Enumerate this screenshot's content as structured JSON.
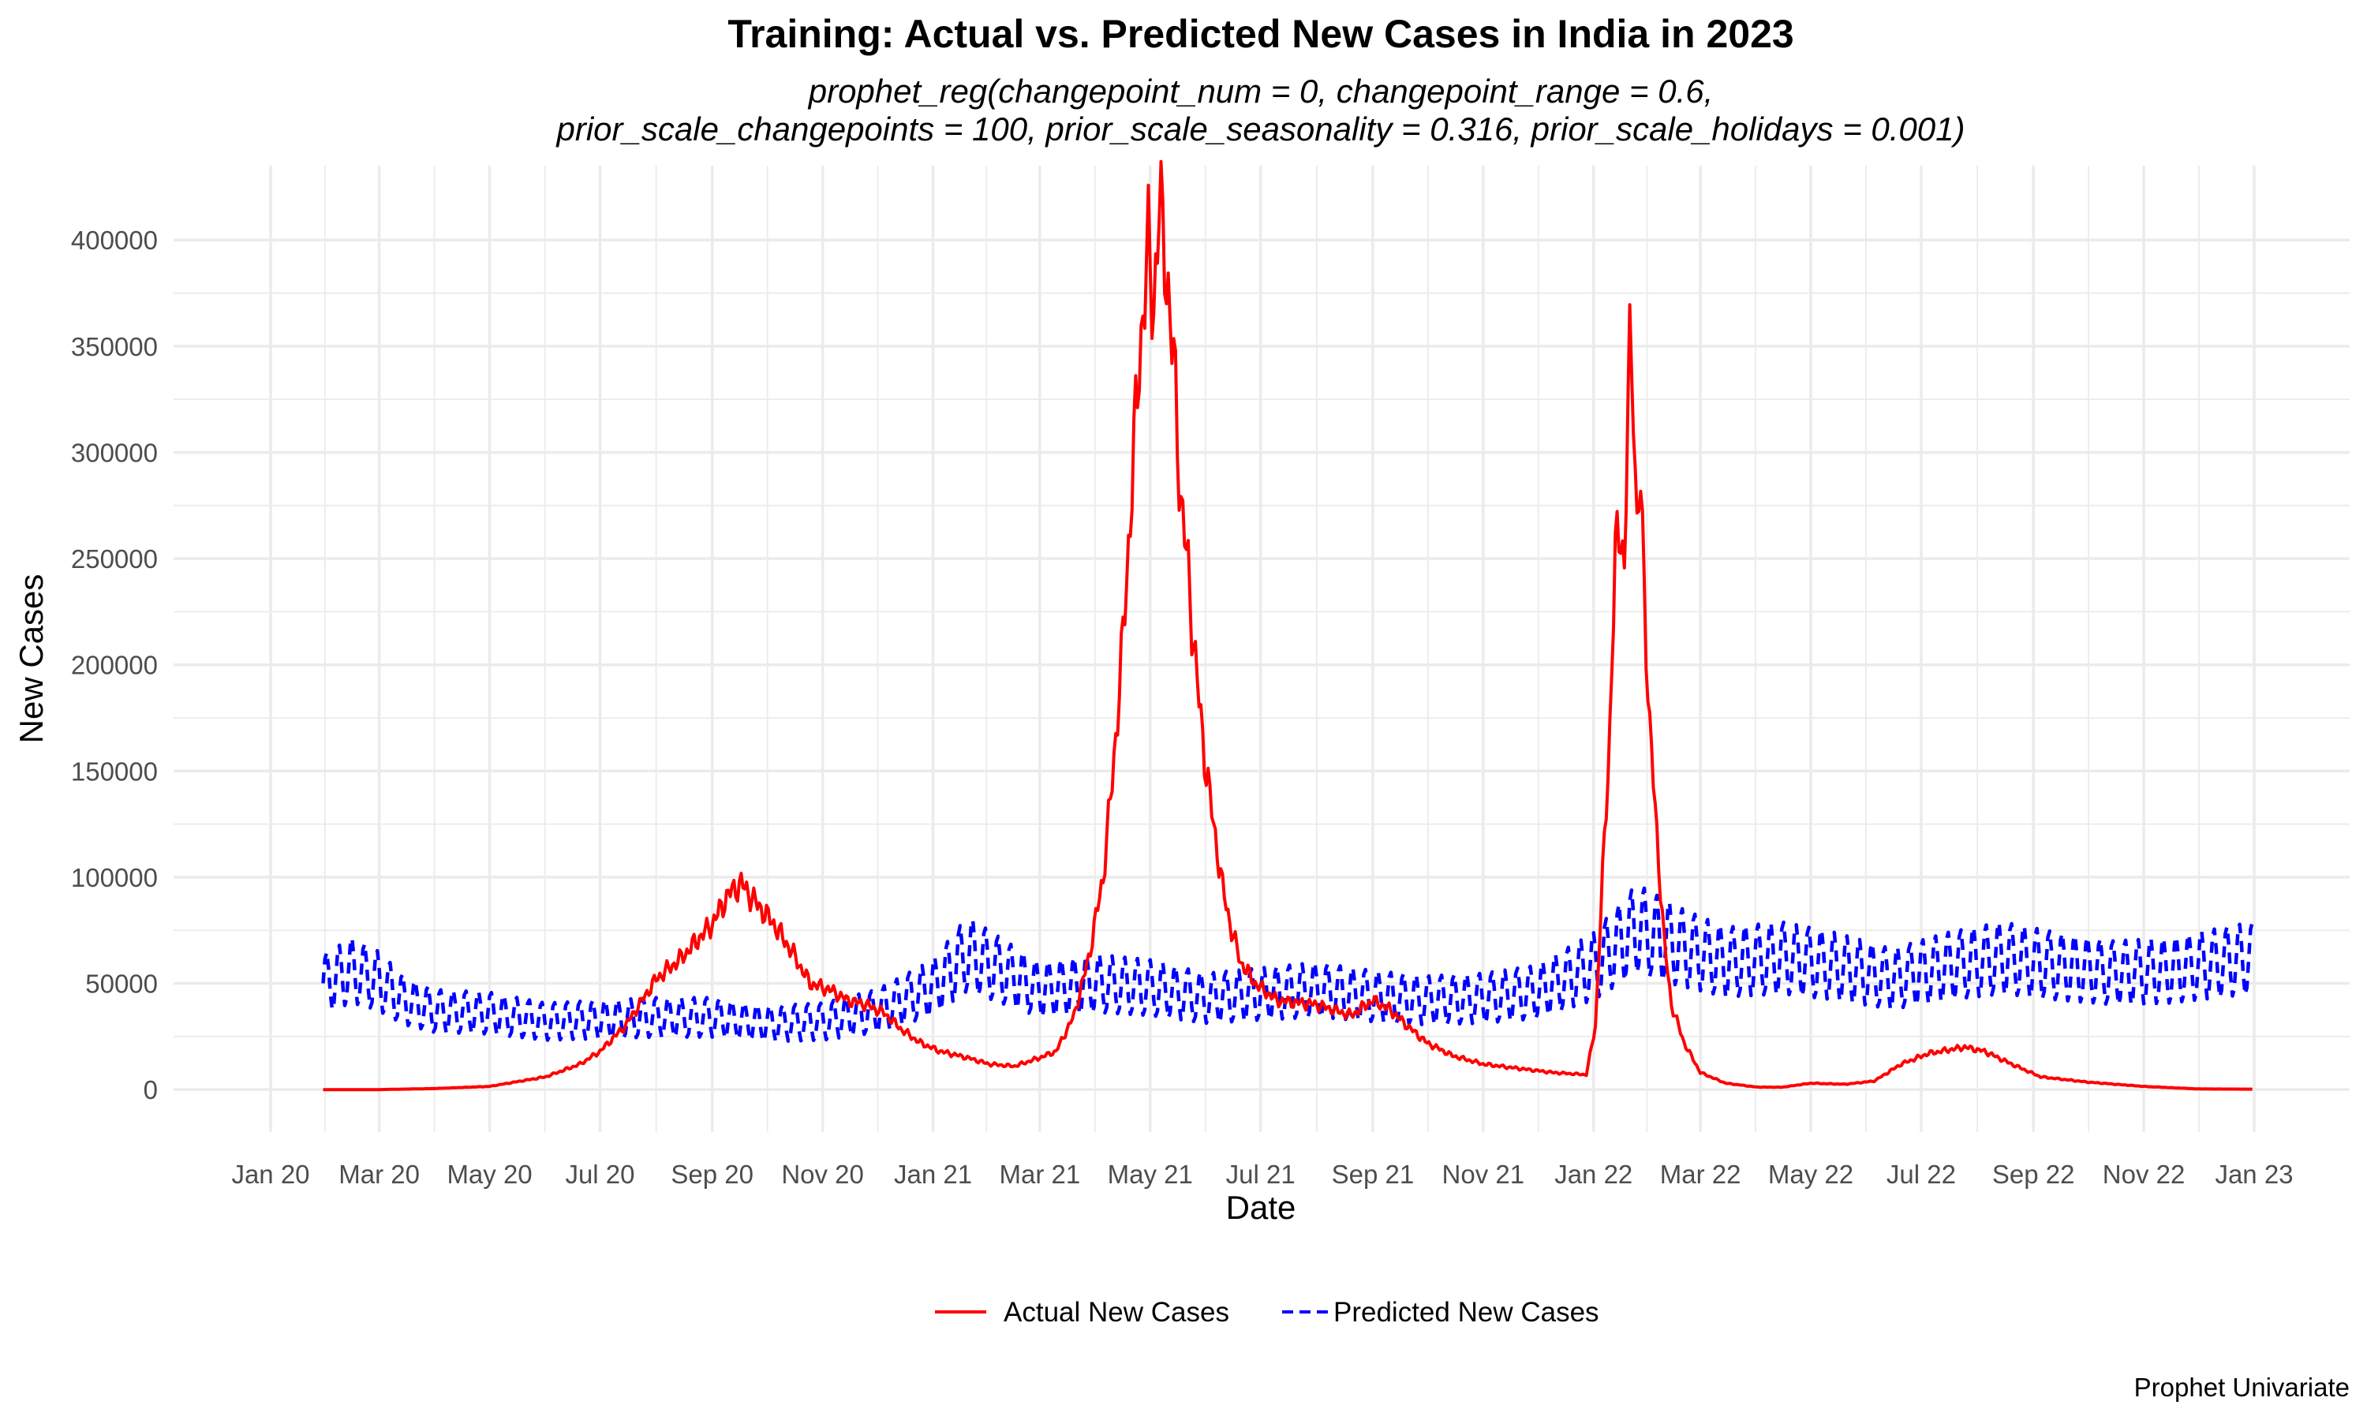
{
  "chart_data": {
    "type": "line",
    "title": "Training: Actual vs. Predicted New Cases in India in 2023",
    "subtitle_lines": [
      "prophet_reg(changepoint_num = 0, changepoint_range = 0.6,",
      "prior_scale_changepoints = 100, prior_scale_seasonality = 0.316, prior_scale_holidays = 0.001)"
    ],
    "xlabel": "Date",
    "ylabel": "New Cases",
    "caption": "Prophet Univariate",
    "xlim": [
      "2020-01-01",
      "2023-01-01"
    ],
    "ylim": [
      -20000,
      435000
    ],
    "x_ticks": [
      {
        "date": "2020-01-01",
        "label": "Jan 20"
      },
      {
        "date": "2020-03-01",
        "label": "Mar 20"
      },
      {
        "date": "2020-05-01",
        "label": "May 20"
      },
      {
        "date": "2020-07-01",
        "label": "Jul 20"
      },
      {
        "date": "2020-09-01",
        "label": "Sep 20"
      },
      {
        "date": "2020-11-01",
        "label": "Nov 20"
      },
      {
        "date": "2021-01-01",
        "label": "Jan 21"
      },
      {
        "date": "2021-03-01",
        "label": "Mar 21"
      },
      {
        "date": "2021-05-01",
        "label": "May 21"
      },
      {
        "date": "2021-07-01",
        "label": "Jul 21"
      },
      {
        "date": "2021-09-01",
        "label": "Sep 21"
      },
      {
        "date": "2021-11-01",
        "label": "Nov 21"
      },
      {
        "date": "2022-01-01",
        "label": "Jan 22"
      },
      {
        "date": "2022-03-01",
        "label": "Mar 22"
      },
      {
        "date": "2022-05-01",
        "label": "May 22"
      },
      {
        "date": "2022-07-01",
        "label": "Jul 22"
      },
      {
        "date": "2022-09-01",
        "label": "Sep 22"
      },
      {
        "date": "2022-11-01",
        "label": "Nov 22"
      },
      {
        "date": "2023-01-01",
        "label": "Jan 23"
      }
    ],
    "y_ticks": [
      0,
      50000,
      100000,
      150000,
      200000,
      250000,
      300000,
      350000,
      400000
    ],
    "grid": true,
    "legend_position": "bottom",
    "series": [
      {
        "name": "Actual New Cases",
        "color": "#ff0000",
        "line_style": "solid",
        "points": [
          [
            "2020-01-30",
            0
          ],
          [
            "2020-03-01",
            0
          ],
          [
            "2020-04-01",
            500
          ],
          [
            "2020-05-01",
            1500
          ],
          [
            "2020-06-01",
            6000
          ],
          [
            "2020-06-20",
            12000
          ],
          [
            "2020-07-01",
            18000
          ],
          [
            "2020-07-15",
            30000
          ],
          [
            "2020-08-01",
            52000
          ],
          [
            "2020-08-15",
            62000
          ],
          [
            "2020-09-01",
            78000
          ],
          [
            "2020-09-10",
            92000
          ],
          [
            "2020-09-17",
            97000
          ],
          [
            "2020-09-25",
            88000
          ],
          [
            "2020-10-05",
            78000
          ],
          [
            "2020-10-15",
            65000
          ],
          [
            "2020-10-25",
            50000
          ],
          [
            "2020-11-05",
            47000
          ],
          [
            "2020-11-15",
            42000
          ],
          [
            "2020-11-25",
            40000
          ],
          [
            "2020-12-05",
            36000
          ],
          [
            "2020-12-15",
            28000
          ],
          [
            "2020-12-25",
            22000
          ],
          [
            "2021-01-05",
            18000
          ],
          [
            "2021-01-20",
            15000
          ],
          [
            "2021-02-01",
            12000
          ],
          [
            "2021-02-15",
            11000
          ],
          [
            "2021-03-01",
            15000
          ],
          [
            "2021-03-10",
            18000
          ],
          [
            "2021-03-20",
            35000
          ],
          [
            "2021-03-28",
            62000
          ],
          [
            "2021-04-05",
            100000
          ],
          [
            "2021-04-10",
            145000
          ],
          [
            "2021-04-15",
            200000
          ],
          [
            "2021-04-20",
            270000
          ],
          [
            "2021-04-25",
            345000
          ],
          [
            "2021-04-30",
            395000
          ],
          [
            "2021-05-03",
            370000
          ],
          [
            "2021-05-06",
            414000
          ],
          [
            "2021-05-09",
            400000
          ],
          [
            "2021-05-12",
            360000
          ],
          [
            "2021-05-15",
            330000
          ],
          [
            "2021-05-18",
            275000
          ],
          [
            "2021-05-22",
            245000
          ],
          [
            "2021-05-26",
            200000
          ],
          [
            "2021-06-01",
            150000
          ],
          [
            "2021-06-05",
            125000
          ],
          [
            "2021-06-10",
            95000
          ],
          [
            "2021-06-15",
            75000
          ],
          [
            "2021-06-20",
            60000
          ],
          [
            "2021-06-28",
            50000
          ],
          [
            "2021-07-10",
            42000
          ],
          [
            "2021-08-01",
            40000
          ],
          [
            "2021-08-20",
            35000
          ],
          [
            "2021-09-01",
            42000
          ],
          [
            "2021-09-10",
            38000
          ],
          [
            "2021-09-20",
            30000
          ],
          [
            "2021-10-01",
            22000
          ],
          [
            "2021-10-15",
            16000
          ],
          [
            "2021-11-01",
            12000
          ],
          [
            "2021-11-20",
            10000
          ],
          [
            "2021-12-10",
            8000
          ],
          [
            "2021-12-28",
            7000
          ],
          [
            "2022-01-02",
            30000
          ],
          [
            "2022-01-06",
            100000
          ],
          [
            "2022-01-10",
            170000
          ],
          [
            "2022-01-13",
            250000
          ],
          [
            "2022-01-16",
            270000
          ],
          [
            "2022-01-18",
            240000
          ],
          [
            "2022-01-20",
            320000
          ],
          [
            "2022-01-21",
            347000
          ],
          [
            "2022-01-23",
            335000
          ],
          [
            "2022-01-25",
            260000
          ],
          [
            "2022-01-27",
            285000
          ],
          [
            "2022-01-29",
            235000
          ],
          [
            "2022-02-01",
            170000
          ],
          [
            "2022-02-05",
            120000
          ],
          [
            "2022-02-09",
            70000
          ],
          [
            "2022-02-13",
            40000
          ],
          [
            "2022-02-20",
            22000
          ],
          [
            "2022-03-01",
            8000
          ],
          [
            "2022-03-15",
            3000
          ],
          [
            "2022-04-01",
            1200
          ],
          [
            "2022-04-15",
            1100
          ],
          [
            "2022-05-01",
            3000
          ],
          [
            "2022-05-20",
            2500
          ],
          [
            "2022-06-05",
            4000
          ],
          [
            "2022-06-20",
            12000
          ],
          [
            "2022-07-05",
            17000
          ],
          [
            "2022-07-25",
            20000
          ],
          [
            "2022-08-05",
            18000
          ],
          [
            "2022-08-20",
            12000
          ],
          [
            "2022-09-05",
            6000
          ],
          [
            "2022-10-01",
            3500
          ],
          [
            "2022-11-01",
            1500
          ],
          [
            "2022-12-01",
            300
          ],
          [
            "2022-12-31",
            200
          ]
        ]
      },
      {
        "name": "Predicted New Cases",
        "color": "#0000ff",
        "line_style": "dashed",
        "weekly_amplitude": 14000,
        "trend_points": [
          [
            "2020-01-30",
            50000
          ],
          [
            "2020-02-15",
            56000
          ],
          [
            "2020-02-28",
            52000
          ],
          [
            "2020-03-15",
            42000
          ],
          [
            "2020-04-01",
            37000
          ],
          [
            "2020-05-01",
            36000
          ],
          [
            "2020-06-01",
            32000
          ],
          [
            "2020-07-01",
            33000
          ],
          [
            "2020-08-01",
            34000
          ],
          [
            "2020-09-01",
            34000
          ],
          [
            "2020-10-01",
            31000
          ],
          [
            "2020-11-01",
            32000
          ],
          [
            "2020-12-01",
            37000
          ],
          [
            "2021-01-01",
            48000
          ],
          [
            "2021-01-20",
            64000
          ],
          [
            "2021-02-10",
            55000
          ],
          [
            "2021-03-01",
            47000
          ],
          [
            "2021-04-01",
            50000
          ],
          [
            "2021-05-01",
            48000
          ],
          [
            "2021-06-01",
            43000
          ],
          [
            "2021-07-01",
            45000
          ],
          [
            "2021-08-01",
            47000
          ],
          [
            "2021-09-01",
            44000
          ],
          [
            "2021-10-01",
            42000
          ],
          [
            "2021-11-01",
            43000
          ],
          [
            "2021-12-01",
            46000
          ],
          [
            "2022-01-01",
            58000
          ],
          [
            "2022-01-25",
            76000
          ],
          [
            "2022-02-15",
            68000
          ],
          [
            "2022-03-15",
            60000
          ],
          [
            "2022-04-15",
            62000
          ],
          [
            "2022-05-15",
            58000
          ],
          [
            "2022-06-15",
            52000
          ],
          [
            "2022-07-15",
            58000
          ],
          [
            "2022-08-15",
            62000
          ],
          [
            "2022-09-15",
            58000
          ],
          [
            "2022-10-15",
            55000
          ],
          [
            "2022-11-15",
            56000
          ],
          [
            "2022-12-15",
            60000
          ],
          [
            "2022-12-31",
            62000
          ]
        ]
      }
    ]
  }
}
